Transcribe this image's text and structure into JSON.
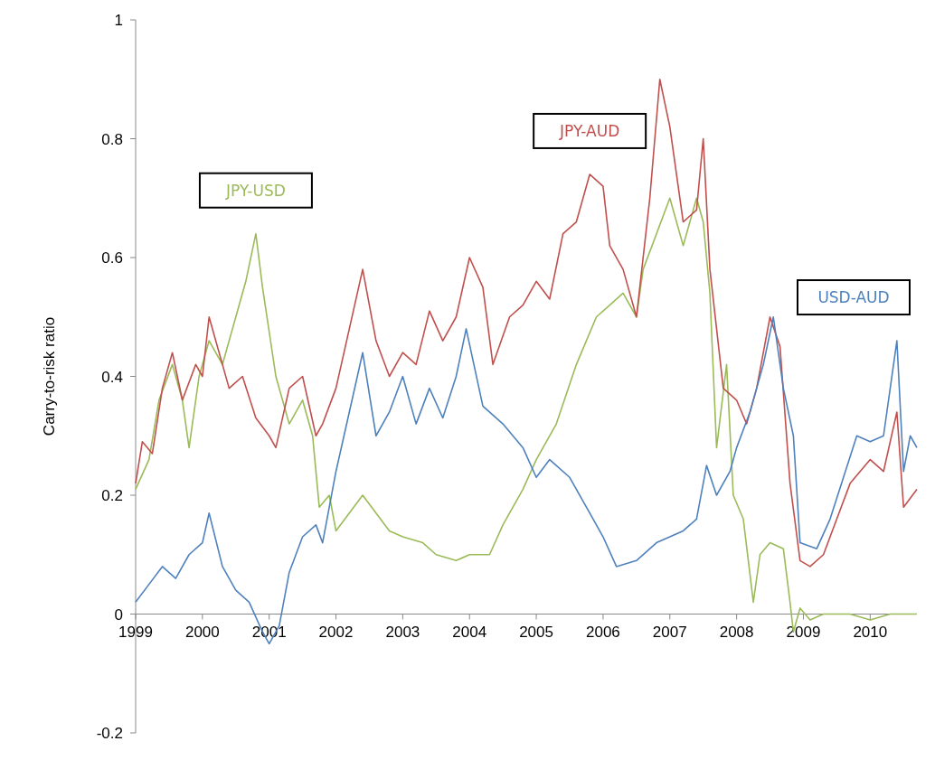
{
  "chart_data": {
    "type": "line",
    "ylabel": "Carry-to-risk ratio",
    "xlim": [
      1999,
      2010.7
    ],
    "xticks": [
      1999,
      2000,
      2001,
      2002,
      2003,
      2004,
      2005,
      2006,
      2007,
      2008,
      2009,
      2010
    ],
    "ylim": [
      -0.2,
      1
    ],
    "yticks": [
      -0.2,
      0,
      0.2,
      0.4,
      0.6,
      0.8,
      1
    ],
    "grid": false,
    "legend": false,
    "marker": "none",
    "line_style": "solid",
    "series": [
      {
        "name": "JPY-USD",
        "color": "#9bbb59",
        "x": [
          1999.0,
          1999.2,
          1999.35,
          1999.55,
          1999.7,
          1999.8,
          1999.95,
          2000.1,
          2000.3,
          2000.5,
          2000.65,
          2000.8,
          2000.9,
          2001.1,
          2001.3,
          2001.5,
          2001.65,
          2001.75,
          2001.9,
          2002.0,
          2002.2,
          2002.4,
          2002.6,
          2002.8,
          2003.0,
          2003.3,
          2003.5,
          2003.8,
          2004.0,
          2004.3,
          2004.5,
          2004.8,
          2005.0,
          2005.3,
          2005.6,
          2005.9,
          2006.1,
          2006.3,
          2006.5,
          2006.6,
          2006.8,
          2007.0,
          2007.2,
          2007.4,
          2007.5,
          2007.6,
          2007.7,
          2007.85,
          2007.95,
          2008.1,
          2008.25,
          2008.35,
          2008.5,
          2008.7,
          2008.8,
          2008.85,
          2008.95,
          2009.1,
          2009.3,
          2009.7,
          2010.0,
          2010.3,
          2010.7
        ],
        "values": [
          0.21,
          0.26,
          0.36,
          0.42,
          0.36,
          0.28,
          0.4,
          0.46,
          0.42,
          0.5,
          0.56,
          0.64,
          0.55,
          0.4,
          0.32,
          0.36,
          0.3,
          0.18,
          0.2,
          0.14,
          0.17,
          0.2,
          0.17,
          0.14,
          0.13,
          0.12,
          0.1,
          0.09,
          0.1,
          0.1,
          0.15,
          0.21,
          0.26,
          0.32,
          0.42,
          0.5,
          0.52,
          0.54,
          0.5,
          0.58,
          0.64,
          0.7,
          0.62,
          0.7,
          0.66,
          0.54,
          0.28,
          0.42,
          0.2,
          0.16,
          0.02,
          0.1,
          0.12,
          0.11,
          0.02,
          -0.03,
          0.01,
          -0.01,
          0.0,
          0.0,
          -0.01,
          0.0,
          0.0
        ]
      },
      {
        "name": "JPY-AUD",
        "color": "#c0504d",
        "x": [
          1999.0,
          1999.1,
          1999.25,
          1999.4,
          1999.55,
          1999.7,
          1999.9,
          2000.0,
          2000.1,
          2000.25,
          2000.4,
          2000.6,
          2000.8,
          2001.0,
          2001.1,
          2001.3,
          2001.5,
          2001.7,
          2001.8,
          2002.0,
          2002.2,
          2002.4,
          2002.6,
          2002.8,
          2003.0,
          2003.2,
          2003.4,
          2003.6,
          2003.8,
          2004.0,
          2004.2,
          2004.35,
          2004.6,
          2004.8,
          2005.0,
          2005.2,
          2005.4,
          2005.6,
          2005.8,
          2006.0,
          2006.1,
          2006.3,
          2006.5,
          2006.7,
          2006.85,
          2007.0,
          2007.2,
          2007.4,
          2007.5,
          2007.6,
          2007.8,
          2008.0,
          2008.15,
          2008.3,
          2008.5,
          2008.65,
          2008.8,
          2008.95,
          2009.1,
          2009.3,
          2009.5,
          2009.7,
          2010.0,
          2010.2,
          2010.4,
          2010.5,
          2010.7
        ],
        "values": [
          0.22,
          0.29,
          0.27,
          0.38,
          0.44,
          0.36,
          0.42,
          0.4,
          0.5,
          0.44,
          0.38,
          0.4,
          0.33,
          0.3,
          0.28,
          0.38,
          0.4,
          0.3,
          0.32,
          0.38,
          0.48,
          0.58,
          0.46,
          0.4,
          0.44,
          0.42,
          0.51,
          0.46,
          0.5,
          0.6,
          0.55,
          0.42,
          0.5,
          0.52,
          0.56,
          0.53,
          0.64,
          0.66,
          0.74,
          0.72,
          0.62,
          0.58,
          0.5,
          0.7,
          0.9,
          0.82,
          0.66,
          0.68,
          0.8,
          0.58,
          0.38,
          0.36,
          0.32,
          0.38,
          0.5,
          0.45,
          0.22,
          0.09,
          0.08,
          0.1,
          0.16,
          0.22,
          0.26,
          0.24,
          0.34,
          0.18,
          0.21
        ]
      },
      {
        "name": "USD-AUD",
        "color": "#4f81bd",
        "x": [
          1999.0,
          1999.2,
          1999.4,
          1999.6,
          1999.8,
          2000.0,
          2000.1,
          2000.3,
          2000.5,
          2000.7,
          2000.9,
          2001.0,
          2001.15,
          2001.3,
          2001.5,
          2001.7,
          2001.8,
          2002.0,
          2002.2,
          2002.4,
          2002.6,
          2002.8,
          2003.0,
          2003.2,
          2003.4,
          2003.6,
          2003.8,
          2003.95,
          2004.2,
          2004.5,
          2004.8,
          2005.0,
          2005.2,
          2005.5,
          2005.8,
          2006.0,
          2006.2,
          2006.5,
          2006.8,
          2007.0,
          2007.2,
          2007.4,
          2007.55,
          2007.7,
          2007.9,
          2008.0,
          2008.2,
          2008.4,
          2008.55,
          2008.7,
          2008.85,
          2008.95,
          2009.2,
          2009.4,
          2009.6,
          2009.8,
          2010.0,
          2010.2,
          2010.4,
          2010.5,
          2010.6,
          2010.7
        ],
        "values": [
          0.02,
          0.05,
          0.08,
          0.06,
          0.1,
          0.12,
          0.17,
          0.08,
          0.04,
          0.02,
          -0.03,
          -0.05,
          -0.02,
          0.07,
          0.13,
          0.15,
          0.12,
          0.24,
          0.34,
          0.44,
          0.3,
          0.34,
          0.4,
          0.32,
          0.38,
          0.33,
          0.4,
          0.48,
          0.35,
          0.32,
          0.28,
          0.23,
          0.26,
          0.23,
          0.17,
          0.13,
          0.08,
          0.09,
          0.12,
          0.13,
          0.14,
          0.16,
          0.25,
          0.2,
          0.24,
          0.28,
          0.34,
          0.42,
          0.5,
          0.38,
          0.3,
          0.12,
          0.11,
          0.16,
          0.23,
          0.3,
          0.29,
          0.3,
          0.46,
          0.24,
          0.3,
          0.28
        ]
      }
    ]
  }
}
